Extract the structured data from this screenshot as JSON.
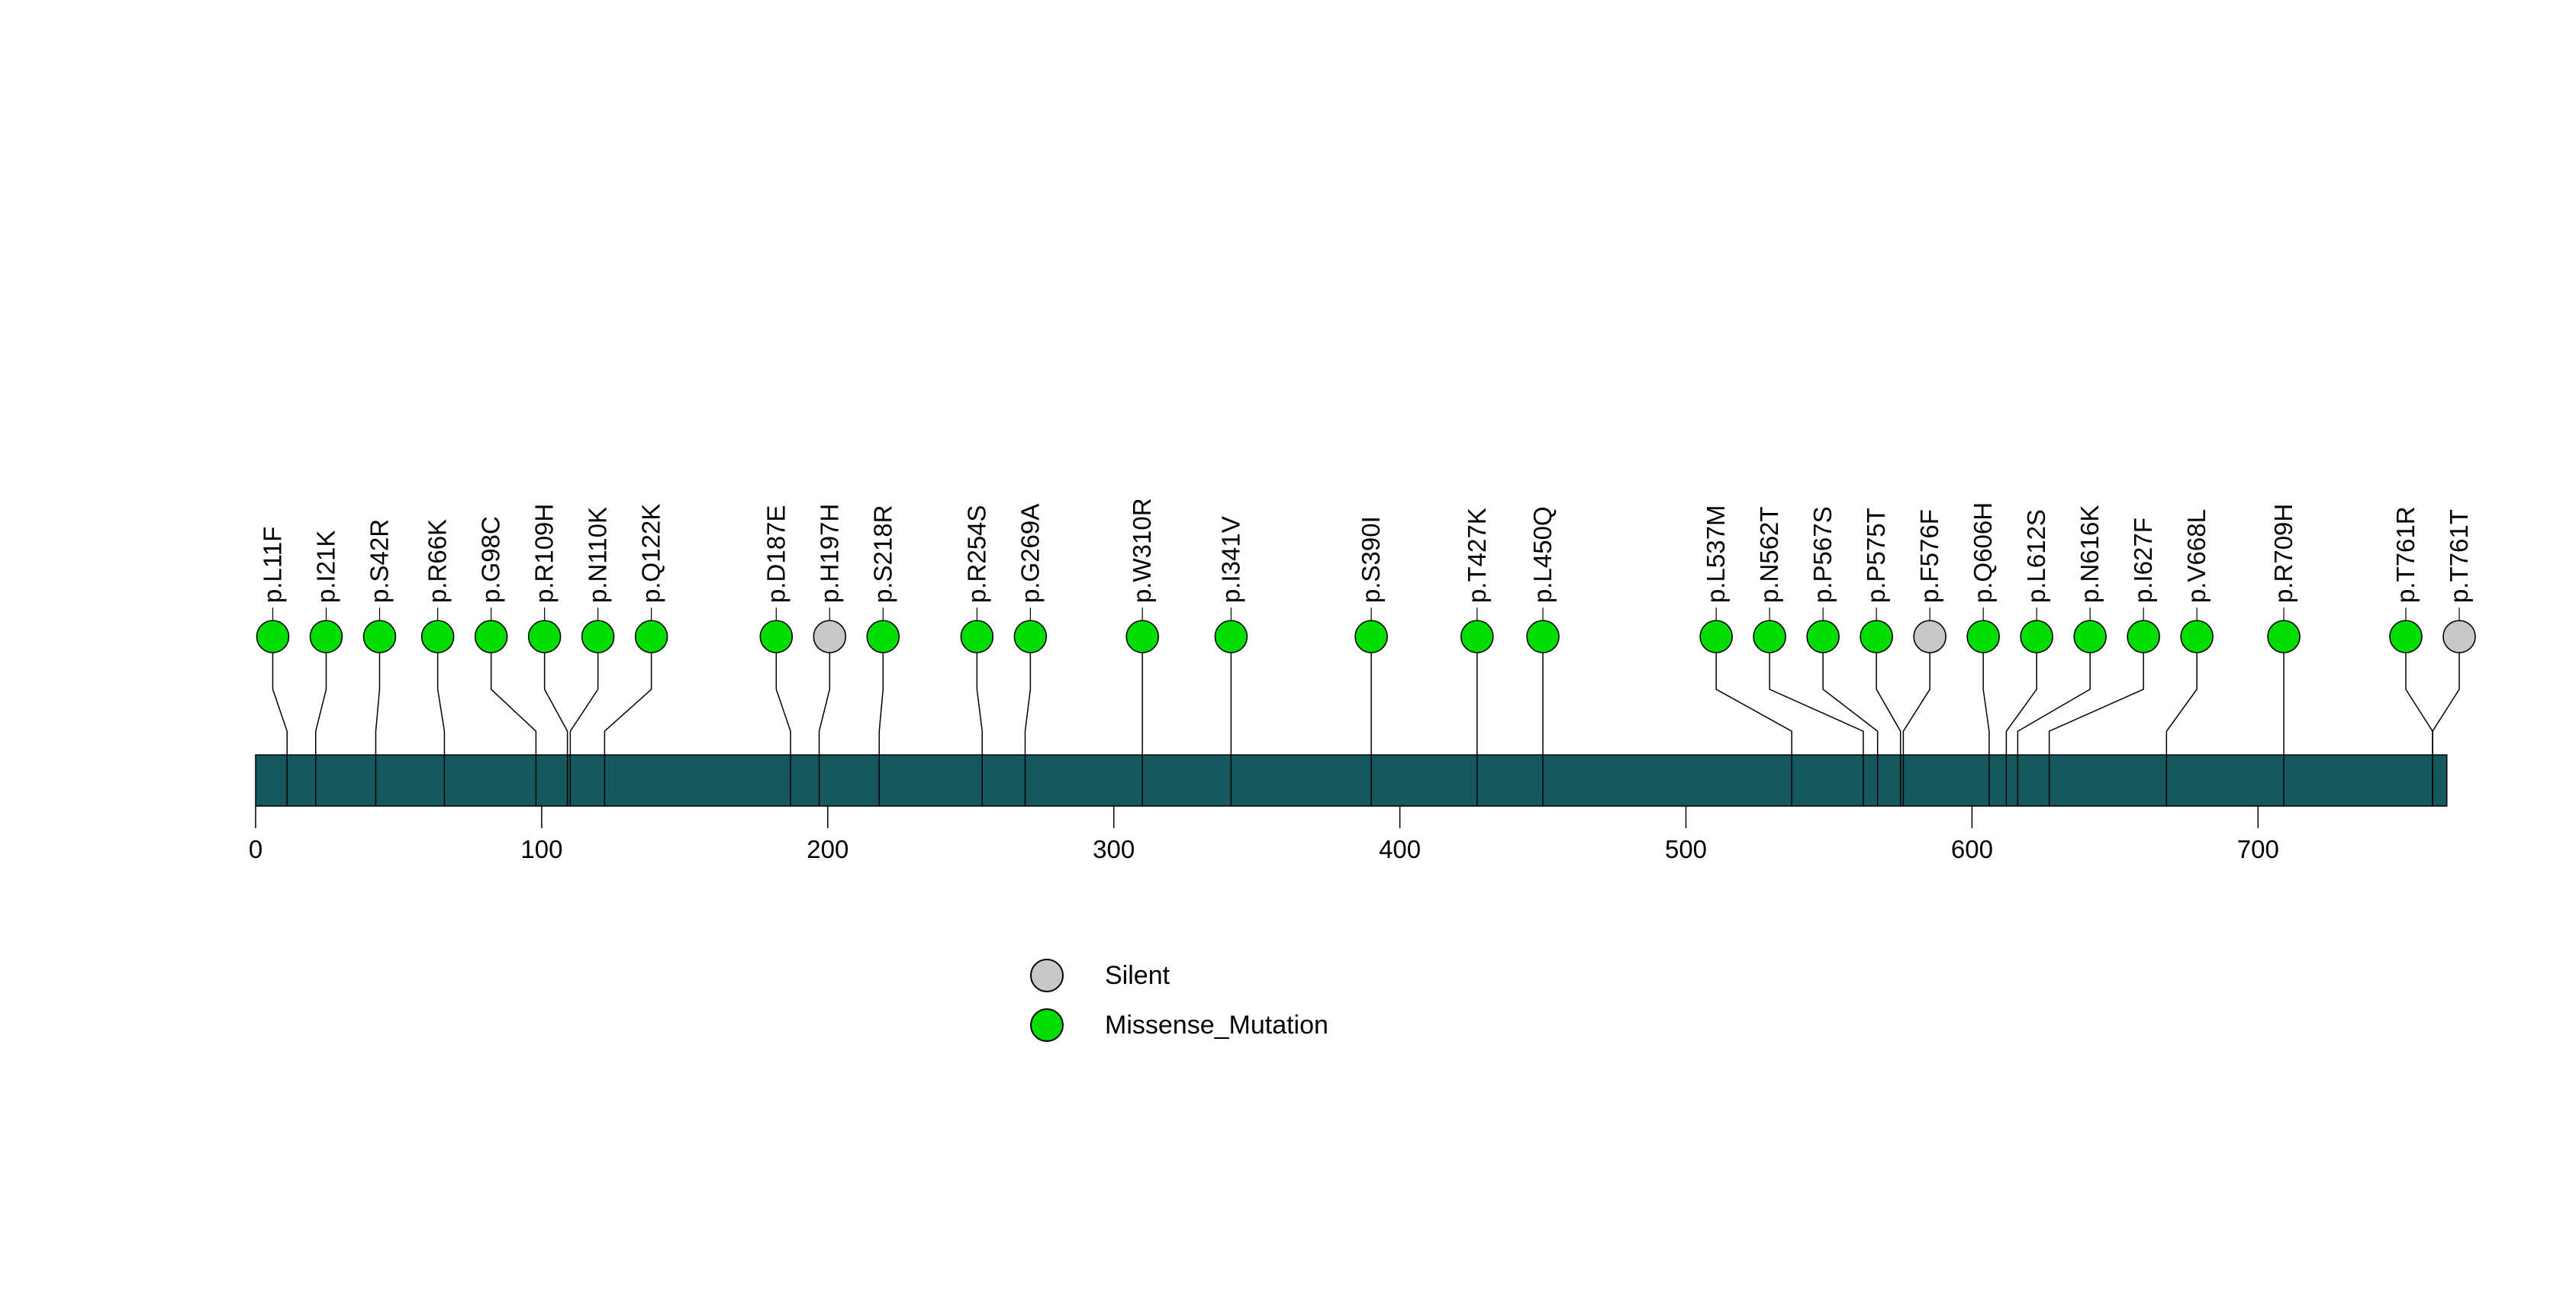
{
  "chart_data": {
    "type": "scatter",
    "subtype": "lollipop_mutation_plot",
    "title": "",
    "xlabel": "",
    "ylabel": "",
    "protein_length_aa": 766,
    "xlim": [
      0,
      766
    ],
    "x_ticks": [
      0,
      100,
      200,
      300,
      400,
      500,
      600,
      700
    ],
    "grid": false,
    "backbone_color": "#15595E",
    "stem_color": "#000000",
    "marker_outline_color": "#000000",
    "background_color": "#FFFFFF",
    "classes": {
      "Silent": {
        "color": "#C8C8C8"
      },
      "Missense_Mutation": {
        "color": "#00DD00"
      }
    },
    "mutations": [
      {
        "label": "p.L11F",
        "position": 11,
        "class": "Missense_Mutation"
      },
      {
        "label": "p.I21K",
        "position": 21,
        "class": "Missense_Mutation"
      },
      {
        "label": "p.S42R",
        "position": 42,
        "class": "Missense_Mutation"
      },
      {
        "label": "p.R66K",
        "position": 66,
        "class": "Missense_Mutation"
      },
      {
        "label": "p.G98C",
        "position": 98,
        "class": "Missense_Mutation"
      },
      {
        "label": "p.R109H",
        "position": 109,
        "class": "Missense_Mutation"
      },
      {
        "label": "p.N110K",
        "position": 110,
        "class": "Missense_Mutation"
      },
      {
        "label": "p.Q122K",
        "position": 122,
        "class": "Missense_Mutation"
      },
      {
        "label": "p.D187E",
        "position": 187,
        "class": "Missense_Mutation"
      },
      {
        "label": "p.H197H",
        "position": 197,
        "class": "Silent"
      },
      {
        "label": "p.S218R",
        "position": 218,
        "class": "Missense_Mutation"
      },
      {
        "label": "p.R254S",
        "position": 254,
        "class": "Missense_Mutation"
      },
      {
        "label": "p.G269A",
        "position": 269,
        "class": "Missense_Mutation"
      },
      {
        "label": "p.W310R",
        "position": 310,
        "class": "Missense_Mutation"
      },
      {
        "label": "p.I341V",
        "position": 341,
        "class": "Missense_Mutation"
      },
      {
        "label": "p.S390I",
        "position": 390,
        "class": "Missense_Mutation"
      },
      {
        "label": "p.T427K",
        "position": 427,
        "class": "Missense_Mutation"
      },
      {
        "label": "p.L450Q",
        "position": 450,
        "class": "Missense_Mutation"
      },
      {
        "label": "p.L537M",
        "position": 537,
        "class": "Missense_Mutation"
      },
      {
        "label": "p.N562T",
        "position": 562,
        "class": "Missense_Mutation"
      },
      {
        "label": "p.P567S",
        "position": 567,
        "class": "Missense_Mutation"
      },
      {
        "label": "p.P575T",
        "position": 575,
        "class": "Missense_Mutation"
      },
      {
        "label": "p.F576F",
        "position": 576,
        "class": "Silent"
      },
      {
        "label": "p.Q606H",
        "position": 606,
        "class": "Missense_Mutation"
      },
      {
        "label": "p.L612S",
        "position": 612,
        "class": "Missense_Mutation"
      },
      {
        "label": "p.N616K",
        "position": 616,
        "class": "Missense_Mutation"
      },
      {
        "label": "p.I627F",
        "position": 627,
        "class": "Missense_Mutation"
      },
      {
        "label": "p.V668L",
        "position": 668,
        "class": "Missense_Mutation"
      },
      {
        "label": "p.R709H",
        "position": 709,
        "class": "Missense_Mutation"
      },
      {
        "label": "p.T761R",
        "position": 761,
        "class": "Missense_Mutation"
      },
      {
        "label": "p.T761T",
        "position": 761,
        "class": "Silent"
      }
    ],
    "legend": [
      {
        "label": "Silent",
        "color": "#C8C8C8"
      },
      {
        "label": "Missense_Mutation",
        "color": "#00DD00"
      }
    ],
    "legend_position": "bottom-left-of-center"
  }
}
